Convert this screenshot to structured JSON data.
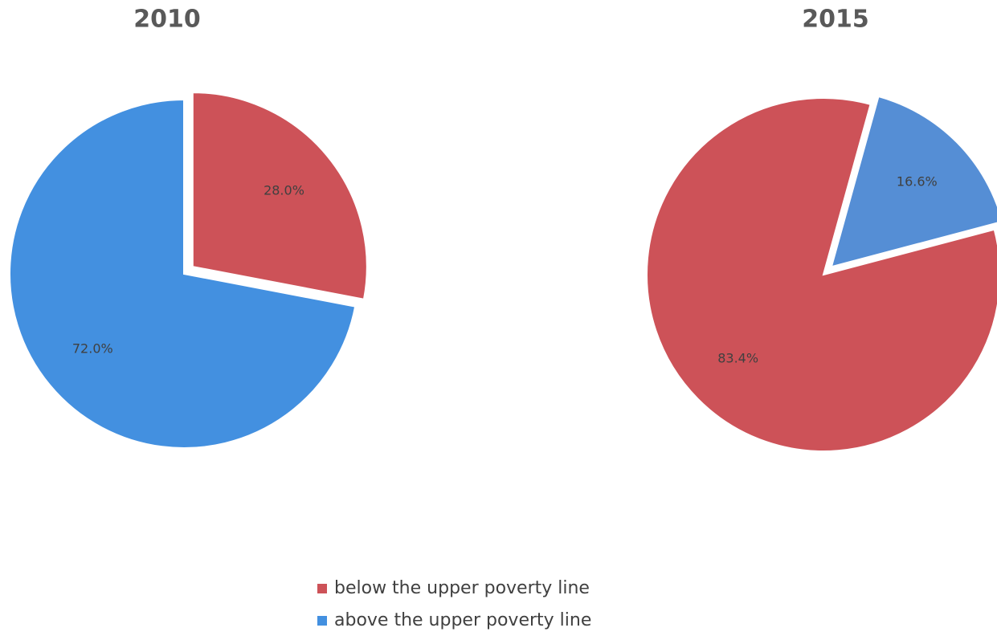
{
  "chart_data": [
    {
      "type": "pie",
      "title": "2010",
      "categories": [
        "below the upper poverty line",
        "above the upper poverty line"
      ],
      "values": [
        28.0,
        72.0
      ],
      "value_labels": [
        "28.0%",
        "72.0%"
      ],
      "colors": [
        "#cd5258",
        "#4390e0"
      ]
    },
    {
      "type": "pie",
      "title": "2015",
      "categories": [
        "below the upper poverty line",
        "above the upper poverty line"
      ],
      "values": [
        83.4,
        16.6
      ],
      "value_labels": [
        "83.4%",
        "16.6%"
      ],
      "colors": [
        "#cd5258",
        "#558ed5"
      ]
    }
  ]
}
